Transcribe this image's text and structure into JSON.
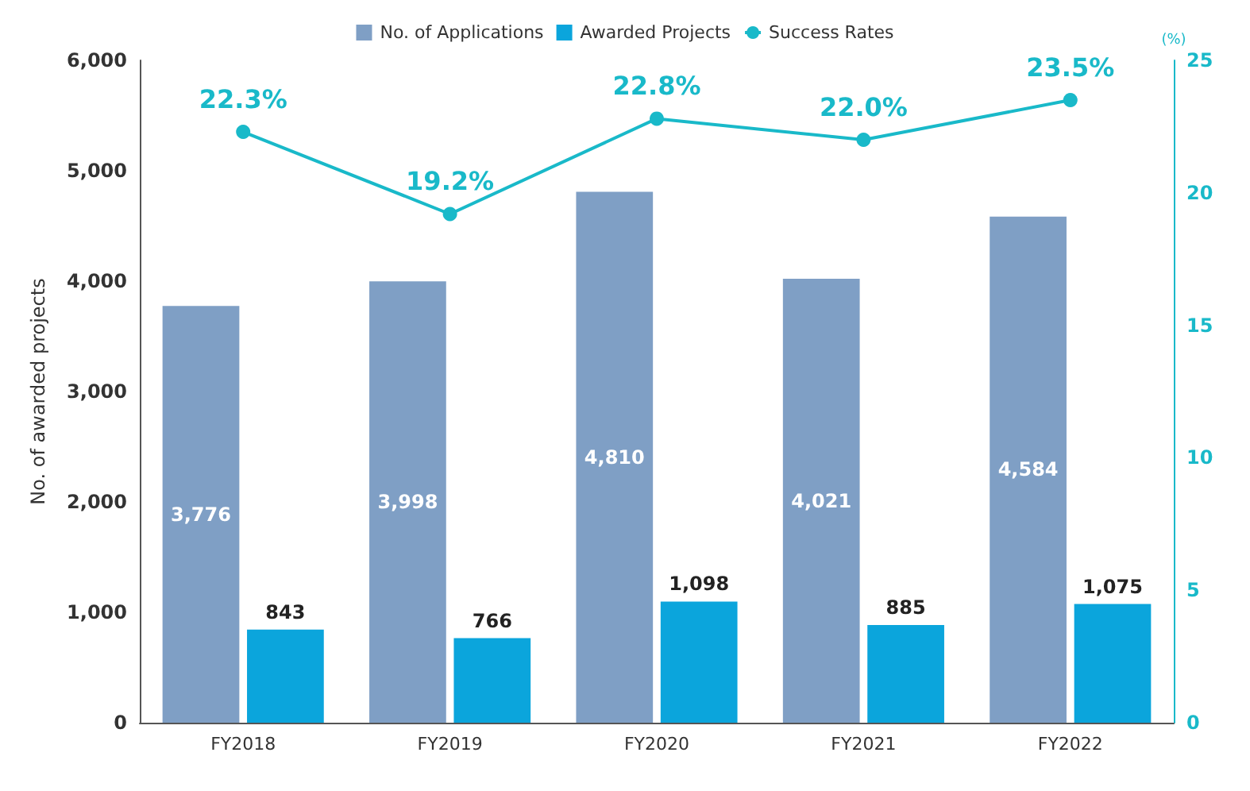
{
  "chart_data": {
    "type": "bar",
    "categories": [
      "FY2018",
      "FY2019",
      "FY2020",
      "FY2021",
      "FY2022"
    ],
    "series": [
      {
        "name": "No. of Applications",
        "color": "#7f9fc5",
        "values": [
          3776,
          3998,
          4810,
          4021,
          4584
        ],
        "value_labels": [
          "3,776",
          "3,998",
          "4,810",
          "4,021",
          "4,584"
        ]
      },
      {
        "name": "Awarded Projects",
        "color": "#0ba5dc",
        "values": [
          843,
          766,
          1098,
          885,
          1075
        ],
        "value_labels": [
          "843",
          "766",
          "1,098",
          "885",
          "1,075"
        ]
      },
      {
        "name": "Success Rates",
        "type": "line",
        "axis": "y2",
        "color": "#19b9c9",
        "marker": "circle",
        "values": [
          22.3,
          19.2,
          22.8,
          22.0,
          23.5
        ],
        "value_labels": [
          "22.3%",
          "19.2%",
          "22.8%",
          "22.0%",
          "23.5%"
        ]
      }
    ],
    "ylabel": "No. of awarded projects",
    "y2label": "(%)",
    "ylim": [
      0,
      6000
    ],
    "yticks": [
      0,
      {
        "value": 1000,
        "label": "1,000"
      },
      {
        "value": 2000,
        "label": "2,000"
      },
      {
        "value": 3000,
        "label": "3,000"
      },
      {
        "value": 4000,
        "label": "4,000"
      },
      {
        "value": 5000,
        "label": "5,000"
      },
      {
        "value": 6000,
        "label": "6,000"
      }
    ],
    "y2lim": [
      0,
      25
    ],
    "y2ticks": [
      0,
      5,
      10,
      15,
      20,
      25
    ],
    "legend": "top",
    "grid": false
  }
}
